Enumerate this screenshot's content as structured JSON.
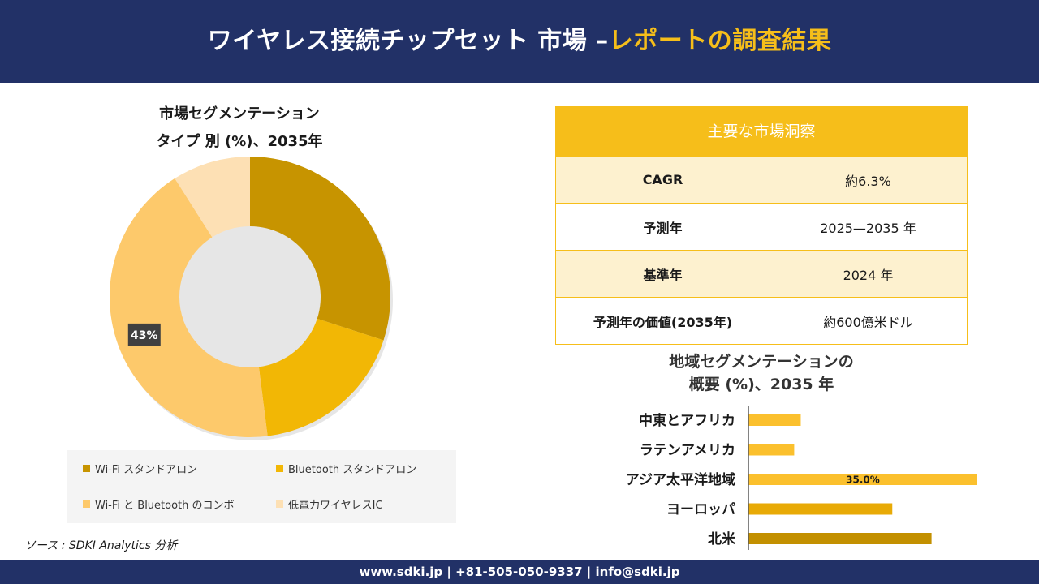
{
  "header": {
    "title_main": "ワイヤレス接続チップセット 市場 –",
    "title_accent": "レポートの調査結果"
  },
  "pie_section": {
    "title_line1": "市場セグメンテーション",
    "title_line2": "タイプ 別 (%)、2035年"
  },
  "insights": {
    "heading": "主要な市場洞察",
    "rows": [
      {
        "key": "CAGR",
        "value": "約6.3%"
      },
      {
        "key": "予測年",
        "value": "2025—2035 年"
      },
      {
        "key": "基準年",
        "value": "2024 年"
      },
      {
        "key": "予測年の価値(2035年)",
        "value": "約600億米ドル"
      }
    ]
  },
  "bar_section": {
    "title_line1": "地域セグメンテーションの",
    "title_line2": "概要 (%)、2035 年"
  },
  "source": "ソース : SDKI Analytics 分析",
  "footer": "www.sdki.jp | +81-505-050-9337 | info@sdki.jp",
  "colors": {
    "navy": "#223167",
    "accent": "#f6be1a"
  },
  "chart_data": [
    {
      "type": "pie",
      "style": "donut",
      "categories": [
        "Wi-Fi スタンドアロン",
        "Bluetooth スタンドアロン",
        "Wi-Fi と Bluetooth のコンボ",
        "低電力ワイヤレスIC"
      ],
      "values": [
        30,
        18,
        43,
        9
      ],
      "value_labels": [
        "",
        "",
        "43%",
        ""
      ],
      "colors": [
        "#c79400",
        "#f2b705",
        "#fdc96b",
        "#fde0b4"
      ],
      "legend_position": "bottom"
    },
    {
      "type": "bar",
      "orientation": "horizontal",
      "categories": [
        "中東とアフリカ",
        "ラテンアメリカ",
        "アジア太平洋地域",
        "ヨーロッパ",
        "北米"
      ],
      "values": [
        8,
        7,
        35,
        22,
        28
      ],
      "value_labels": [
        "",
        "",
        "35.0%",
        "",
        ""
      ],
      "colors": [
        "#fbc02d",
        "#fbc02d",
        "#fbc02d",
        "#e8aa06",
        "#c39000"
      ],
      "xlim": [
        0,
        35
      ],
      "grid": false
    }
  ]
}
